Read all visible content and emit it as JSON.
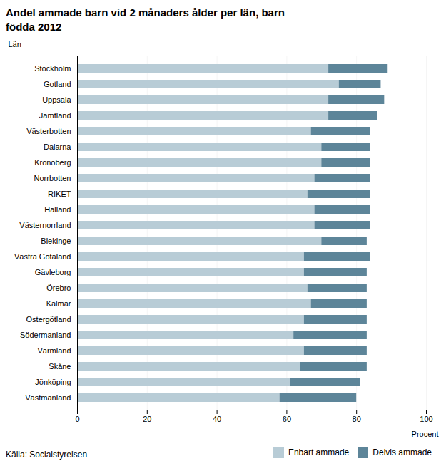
{
  "chart_data": {
    "type": "bar",
    "orientation": "horizontal",
    "stacked": true,
    "title": "Andel ammade barn vid 2 månaders ålder per län, barn\nfödda 2012",
    "xlabel": "Procent",
    "ylabel": "Län",
    "source": "Källa: Socialstyrelsen",
    "categories": [
      "Västmanland",
      "Jönköping",
      "Skåne",
      "Värmland",
      "Södermanland",
      "Östergötland",
      "Kalmar",
      "Örebro",
      "Gävleborg",
      "Västra Götaland",
      "Blekinge",
      "Västernorrland",
      "Halland",
      "RIKET",
      "Norrbotten",
      "Kronoberg",
      "Dalarna",
      "Västerbotten",
      "Jämtland",
      "Uppsala",
      "Gotland",
      "Stockholm"
    ],
    "series": [
      {
        "name": "Enbart ammade",
        "color": "#b8ccd6",
        "values": [
          58,
          61,
          64,
          65,
          62,
          65,
          67,
          66,
          65,
          65,
          70,
          68,
          68,
          66,
          68,
          70,
          70,
          67,
          72,
          72,
          75,
          72
        ]
      },
      {
        "name": "Delvis ammade",
        "color": "#5d8599",
        "values": [
          22,
          20,
          19,
          18,
          21,
          18,
          16,
          17,
          18,
          19,
          13,
          16,
          16,
          18,
          16,
          14,
          14,
          17,
          14,
          16,
          12,
          17
        ]
      }
    ],
    "xlim": [
      0,
      100
    ],
    "xticks": [
      0,
      20,
      40,
      60,
      80,
      100
    ],
    "grid": true,
    "legend": "bottom"
  }
}
